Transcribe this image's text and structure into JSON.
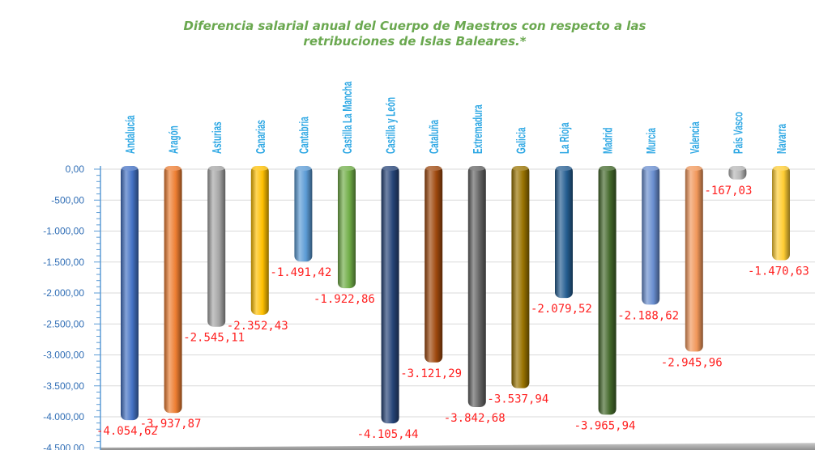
{
  "chart_data": {
    "type": "bar",
    "title_line1": "Diferencia salarial anual del Cuerpo de Maestros con respecto a las",
    "title_line2": "retribuciones de Islas Baleares.*",
    "xlabel": "",
    "ylabel": "",
    "categories": [
      "Andalucía",
      "Aragón",
      "Asturias",
      "Canarias",
      "Cantabria",
      "Castilla La Mancha",
      "Castilla y León",
      "Cataluña",
      "Extremadura",
      "Galicia",
      "La Rioja",
      "Madrid",
      "Murcia",
      "Valencia",
      "País Vasco",
      "Navarra"
    ],
    "values": [
      -4054.62,
      -3937.87,
      -2545.11,
      -2352.43,
      -1491.42,
      -1922.86,
      -4105.44,
      -3121.29,
      -3842.68,
      -3537.94,
      -2079.52,
      -3965.94,
      -2188.62,
      -2945.96,
      -167.03,
      -1470.63
    ],
    "data_labels": [
      "-4.054,62",
      "-3.937,87",
      "-2.545,11",
      "-2.352,43",
      "-1.491,42",
      "-1.922,86",
      "-4.105,44",
      "-3.121,29",
      "-3.842,68",
      "-3.537,94",
      "-2.079,52",
      "-3.965,94",
      "-2.188,62",
      "-2.945,96",
      "-167,03",
      "-1.470,63"
    ],
    "bar_colors": [
      "#4472c4",
      "#ed7d31",
      "#a5a5a5",
      "#ffc000",
      "#5b9bd5",
      "#70ad47",
      "#264478",
      "#9e480e",
      "#636363",
      "#997300",
      "#255e91",
      "#43682b",
      "#698ed0",
      "#f1975a",
      "#b7b7b7",
      "#ffcd33"
    ],
    "yticks": [
      0,
      -500,
      -1000,
      -1500,
      -2000,
      -2500,
      -3000,
      -3500,
      -4000,
      -4500
    ],
    "ytick_labels": [
      "0,00",
      "-500,00",
      "-1.000,00",
      "-1.500,00",
      "-2.000,00",
      "-2.500,00",
      "-3.000,00",
      "-3.500,00",
      "-4.000,00",
      "-4.500,00"
    ],
    "ylim": [
      -4500,
      0
    ],
    "grid": true,
    "legend": "none"
  }
}
